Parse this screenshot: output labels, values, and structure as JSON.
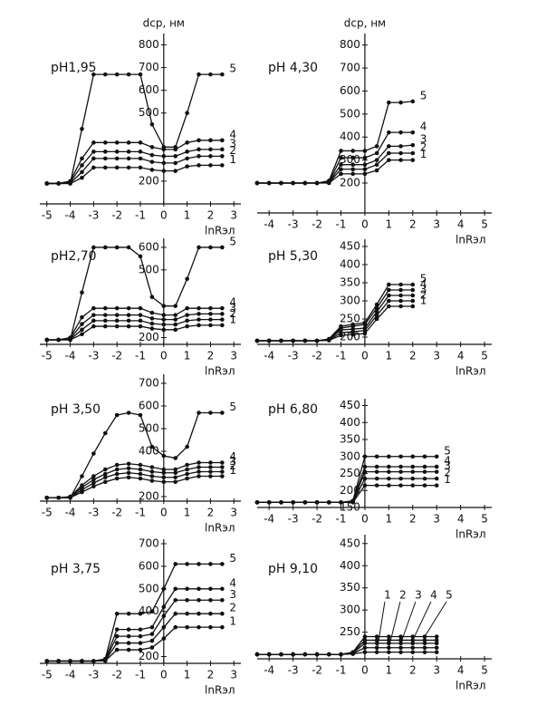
{
  "chart_data": [
    {
      "type": "line",
      "title": "pH1,95",
      "ylabel": "dср, нм",
      "xlabel": "lnRэл",
      "x": [
        -5,
        -4.5,
        -4,
        -3.5,
        -3,
        -2.5,
        -2,
        -1.5,
        -1,
        -0.5,
        0,
        0.5,
        1,
        1.5,
        2,
        2.5
      ],
      "xlim": [
        -5.3,
        3.3
      ],
      "xticks": [
        -5,
        -4,
        -3,
        -2,
        -1,
        0,
        1,
        2,
        3
      ],
      "ylim": [
        100,
        850
      ],
      "yticks": [
        200,
        500,
        600,
        700,
        800
      ],
      "color": "#111111",
      "series": [
        {
          "name": "1",
          "values": [
            190,
            190,
            190,
            215,
            260,
            260,
            260,
            260,
            260,
            250,
            245,
            245,
            265,
            270,
            270,
            270
          ]
        },
        {
          "name": "2",
          "values": [
            190,
            190,
            192,
            240,
            300,
            300,
            300,
            300,
            300,
            285,
            280,
            280,
            300,
            310,
            310,
            310
          ]
        },
        {
          "name": "3",
          "values": [
            190,
            190,
            195,
            270,
            330,
            330,
            330,
            330,
            330,
            315,
            310,
            310,
            330,
            340,
            340,
            340
          ]
        },
        {
          "name": "4",
          "values": [
            190,
            190,
            200,
            300,
            370,
            370,
            370,
            370,
            370,
            350,
            340,
            340,
            370,
            380,
            380,
            380
          ]
        },
        {
          "name": "5",
          "values": [
            190,
            190,
            190,
            430,
            670,
            670,
            670,
            670,
            670,
            450,
            350,
            350,
            500,
            670,
            670,
            670
          ]
        }
      ]
    },
    {
      "type": "line",
      "title": "pH 4,30",
      "ylabel": "dср, нм",
      "xlabel": "lnRэл",
      "x": [
        -4.5,
        -4,
        -3.5,
        -3,
        -2.5,
        -2,
        -1.5,
        -1,
        -0.5,
        0,
        0.5,
        1,
        1.5,
        2
      ],
      "xlim": [
        -4.5,
        5.3
      ],
      "xticks": [
        -4,
        -3,
        -2,
        -1,
        0,
        1,
        2,
        3,
        4,
        5
      ],
      "ylim": [
        70,
        850
      ],
      "yticks": [
        200,
        300,
        400,
        500,
        600,
        700,
        800
      ],
      "color": "#111111",
      "series": [
        {
          "name": "1",
          "values": [
            200,
            200,
            200,
            200,
            200,
            200,
            200,
            240,
            240,
            240,
            255,
            300,
            300,
            300
          ]
        },
        {
          "name": "2",
          "values": [
            200,
            200,
            200,
            200,
            200,
            200,
            202,
            260,
            260,
            260,
            280,
            330,
            330,
            330
          ]
        },
        {
          "name": "3",
          "values": [
            200,
            200,
            200,
            200,
            200,
            200,
            203,
            280,
            280,
            280,
            300,
            360,
            360,
            365
          ]
        },
        {
          "name": "4",
          "values": [
            200,
            200,
            200,
            200,
            200,
            200,
            205,
            310,
            310,
            310,
            330,
            420,
            420,
            420
          ]
        },
        {
          "name": "5",
          "values": [
            200,
            200,
            200,
            200,
            200,
            200,
            210,
            340,
            340,
            340,
            360,
            550,
            550,
            555
          ]
        }
      ]
    },
    {
      "type": "line",
      "title": "pH2,70",
      "xlabel": "lnRэл",
      "x": [
        -5,
        -4.5,
        -4,
        -3.5,
        -3,
        -2.5,
        -2,
        -1.5,
        -1,
        -0.5,
        0,
        0.5,
        1,
        1.5,
        2,
        2.5
      ],
      "xlim": [
        -5.3,
        3.3
      ],
      "xticks": [
        -5,
        -4,
        -3,
        -2,
        -1,
        0,
        1,
        2,
        3
      ],
      "ylim": [
        170,
        640
      ],
      "yticks": [
        200,
        500,
        600
      ],
      "color": "#111111",
      "series": [
        {
          "name": "1",
          "values": [
            190,
            190,
            190,
            215,
            250,
            250,
            250,
            250,
            250,
            240,
            235,
            235,
            250,
            255,
            255,
            255
          ]
        },
        {
          "name": "2",
          "values": [
            190,
            190,
            192,
            235,
            275,
            275,
            275,
            275,
            275,
            262,
            258,
            258,
            275,
            280,
            280,
            280
          ]
        },
        {
          "name": "3",
          "values": [
            190,
            190,
            195,
            260,
            300,
            300,
            300,
            300,
            300,
            285,
            280,
            280,
            300,
            305,
            305,
            305
          ]
        },
        {
          "name": "4",
          "values": [
            190,
            190,
            200,
            290,
            330,
            330,
            330,
            330,
            330,
            310,
            300,
            300,
            330,
            330,
            330,
            330
          ]
        },
        {
          "name": "5",
          "values": [
            190,
            190,
            190,
            400,
            600,
            600,
            600,
            600,
            560,
            380,
            340,
            340,
            460,
            600,
            600,
            600
          ]
        }
      ]
    },
    {
      "type": "line",
      "title": "pH 5,30",
      "xlabel": "lnRэл",
      "x": [
        -4.5,
        -4,
        -3.5,
        -3,
        -2.5,
        -2,
        -1.5,
        -1,
        -0.5,
        0,
        0.5,
        1,
        1.5,
        2
      ],
      "xlim": [
        -4.5,
        5.3
      ],
      "xticks": [
        -4,
        -3,
        -2,
        -1,
        0,
        1,
        2,
        3,
        4,
        5
      ],
      "ylim": [
        180,
        470
      ],
      "yticks": [
        200,
        250,
        300,
        350,
        400,
        450
      ],
      "color": "#111111",
      "series": [
        {
          "name": "1",
          "values": [
            190,
            190,
            190,
            190,
            190,
            190,
            191,
            205,
            207,
            210,
            250,
            285,
            285,
            285
          ]
        },
        {
          "name": "2",
          "values": [
            190,
            190,
            190,
            190,
            190,
            190,
            192,
            212,
            215,
            218,
            260,
            300,
            300,
            300
          ]
        },
        {
          "name": "3",
          "values": [
            190,
            190,
            190,
            190,
            190,
            190,
            193,
            220,
            222,
            225,
            270,
            315,
            315,
            315
          ]
        },
        {
          "name": "4",
          "values": [
            190,
            190,
            190,
            190,
            190,
            190,
            194,
            225,
            230,
            235,
            280,
            330,
            330,
            330
          ]
        },
        {
          "name": "5",
          "values": [
            190,
            190,
            190,
            190,
            190,
            190,
            195,
            230,
            235,
            240,
            290,
            345,
            345,
            345
          ]
        }
      ]
    },
    {
      "type": "line",
      "title": "pH 3,50",
      "xlabel": "lnRэл",
      "x": [
        -5,
        -4.5,
        -4,
        -3.5,
        -3,
        -2.5,
        -2,
        -1.5,
        -1,
        -0.5,
        0,
        0.5,
        1,
        1.5,
        2,
        2.5
      ],
      "xlim": [
        -5.3,
        3.3
      ],
      "xticks": [
        -5,
        -4,
        -3,
        -2,
        -1,
        0,
        1,
        2,
        3
      ],
      "ylim": [
        180,
        740
      ],
      "yticks": [
        200,
        400,
        500,
        600,
        700
      ],
      "color": "#111111",
      "series": [
        {
          "name": "1",
          "values": [
            195,
            195,
            195,
            220,
            245,
            265,
            280,
            285,
            280,
            270,
            265,
            265,
            280,
            290,
            290,
            290
          ]
        },
        {
          "name": "2",
          "values": [
            195,
            195,
            196,
            230,
            260,
            285,
            300,
            305,
            300,
            290,
            285,
            285,
            300,
            310,
            310,
            310
          ]
        },
        {
          "name": "3",
          "values": [
            195,
            195,
            198,
            240,
            275,
            300,
            320,
            325,
            320,
            310,
            305,
            305,
            320,
            330,
            330,
            330
          ]
        },
        {
          "name": "4",
          "values": [
            195,
            195,
            200,
            250,
            290,
            320,
            340,
            345,
            340,
            330,
            320,
            320,
            340,
            350,
            350,
            350
          ]
        },
        {
          "name": "5",
          "values": [
            195,
            195,
            195,
            290,
            390,
            480,
            560,
            570,
            560,
            420,
            380,
            370,
            420,
            570,
            570,
            570
          ]
        }
      ]
    },
    {
      "type": "line",
      "title": "pH 6,80",
      "xlabel": "lnRэл",
      "x": [
        -4.5,
        -4,
        -3.5,
        -3,
        -2.5,
        -2,
        -1.5,
        -1,
        -0.5,
        0,
        0.5,
        1,
        1.5,
        2,
        2.5,
        3
      ],
      "xlim": [
        -4.5,
        5.3
      ],
      "xticks": [
        -4,
        -3,
        -2,
        -1,
        0,
        1,
        2,
        3,
        4,
        5
      ],
      "ylim": [
        150,
        470
      ],
      "yticks": [
        150,
        200,
        250,
        300,
        350,
        400,
        450
      ],
      "color": "#111111",
      "series": [
        {
          "name": "1",
          "values": [
            165,
            165,
            165,
            165,
            165,
            165,
            165,
            165,
            165,
            215,
            215,
            215,
            215,
            215,
            215,
            215
          ]
        },
        {
          "name": "2",
          "values": [
            165,
            165,
            165,
            165,
            165,
            165,
            165,
            165,
            166,
            235,
            235,
            235,
            235,
            235,
            235,
            235
          ]
        },
        {
          "name": "3",
          "values": [
            165,
            165,
            165,
            165,
            165,
            165,
            165,
            165,
            167,
            255,
            255,
            255,
            255,
            255,
            255,
            255
          ]
        },
        {
          "name": "4",
          "values": [
            165,
            165,
            165,
            165,
            165,
            165,
            165,
            165,
            168,
            270,
            270,
            270,
            270,
            270,
            270,
            270
          ]
        },
        {
          "name": "5",
          "values": [
            165,
            165,
            165,
            165,
            165,
            165,
            165,
            165,
            170,
            300,
            300,
            300,
            300,
            300,
            300,
            300
          ]
        }
      ]
    },
    {
      "type": "line",
      "title": "pH 3,75",
      "xlabel": "lnRэл",
      "x": [
        -5,
        -4.5,
        -4,
        -3.5,
        -3,
        -2.5,
        -2,
        -1.5,
        -1,
        -0.5,
        0,
        0.5,
        1,
        1.5,
        2,
        2.5
      ],
      "xlim": [
        -5.3,
        3.3
      ],
      "xticks": [
        -5,
        -4,
        -3,
        -2,
        -1,
        0,
        1,
        2,
        3
      ],
      "ylim": [
        170,
        720
      ],
      "yticks": [
        200,
        400,
        500,
        600,
        700
      ],
      "color": "#111111",
      "series": [
        {
          "name": "1",
          "values": [
            180,
            180,
            180,
            180,
            180,
            181,
            230,
            230,
            230,
            240,
            280,
            330,
            330,
            330,
            330,
            330
          ]
        },
        {
          "name": "2",
          "values": [
            180,
            180,
            180,
            180,
            180,
            182,
            260,
            260,
            260,
            270,
            330,
            390,
            390,
            390,
            390,
            390
          ]
        },
        {
          "name": "3",
          "values": [
            180,
            180,
            180,
            180,
            180,
            183,
            290,
            290,
            290,
            300,
            380,
            450,
            450,
            450,
            450,
            450
          ]
        },
        {
          "name": "4",
          "values": [
            180,
            180,
            180,
            180,
            180,
            185,
            320,
            320,
            320,
            330,
            420,
            500,
            500,
            500,
            500,
            500
          ]
        },
        {
          "name": "5",
          "values": [
            180,
            180,
            180,
            180,
            180,
            190,
            390,
            390,
            390,
            400,
            500,
            610,
            610,
            610,
            610,
            610
          ]
        }
      ]
    },
    {
      "type": "line",
      "title": "pH 9,10",
      "xlabel": "lnRэл",
      "series_labels": "top",
      "x": [
        -4.5,
        -4,
        -3.5,
        -3,
        -2.5,
        -2,
        -1.5,
        -1,
        -0.5,
        0,
        0.5,
        1,
        1.5,
        2,
        2.5,
        3
      ],
      "xlim": [
        -4.5,
        5.3
      ],
      "xticks": [
        -4,
        -3,
        -2,
        -1,
        0,
        1,
        2,
        3,
        4,
        5
      ],
      "ylim": [
        190,
        470
      ],
      "yticks": [
        250,
        300,
        350,
        400,
        450
      ],
      "color": "#111111",
      "series": [
        {
          "name": "1",
          "values": [
            200,
            200,
            200,
            200,
            200,
            200,
            200,
            200,
            201,
            205,
            205,
            205,
            205,
            205,
            205,
            205
          ]
        },
        {
          "name": "2",
          "values": [
            200,
            200,
            200,
            200,
            200,
            200,
            200,
            200,
            202,
            215,
            215,
            215,
            215,
            215,
            215,
            215
          ]
        },
        {
          "name": "3",
          "values": [
            200,
            200,
            200,
            200,
            200,
            200,
            200,
            200,
            203,
            225,
            225,
            225,
            225,
            225,
            225,
            225
          ]
        },
        {
          "name": "4",
          "values": [
            200,
            200,
            200,
            200,
            200,
            200,
            200,
            200,
            204,
            232,
            232,
            232,
            232,
            232,
            232,
            232
          ]
        },
        {
          "name": "5",
          "values": [
            200,
            200,
            200,
            200,
            200,
            200,
            200,
            200,
            205,
            240,
            240,
            240,
            240,
            240,
            240,
            240
          ]
        }
      ]
    }
  ]
}
